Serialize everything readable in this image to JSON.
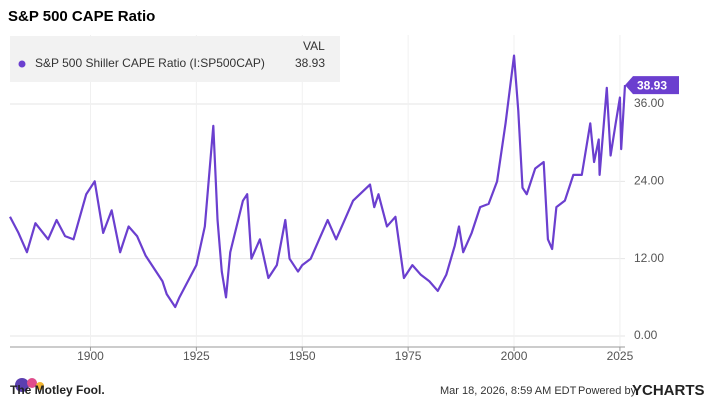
{
  "chart_data": {
    "type": "line",
    "title": "S&P 500 CAPE Ratio",
    "legend_header": "VAL",
    "x": [
      1881,
      1883,
      1885,
      1887,
      1890,
      1892,
      1894,
      1896,
      1899,
      1901,
      1903,
      1905,
      1907,
      1909,
      1911,
      1913,
      1915,
      1917,
      1918,
      1920,
      1921,
      1923,
      1925,
      1927,
      1929,
      1930,
      1931,
      1932,
      1933,
      1936,
      1937,
      1938,
      1940,
      1942,
      1944,
      1946,
      1947,
      1949,
      1950,
      1952,
      1954,
      1956,
      1958,
      1960,
      1962,
      1966,
      1967,
      1968,
      1970,
      1972,
      1974,
      1976,
      1978,
      1980,
      1982,
      1984,
      1986,
      1987,
      1988,
      1990,
      1992,
      1994,
      1996,
      1998,
      2000,
      2001,
      2002,
      2003,
      2005,
      2007,
      2008,
      2009,
      2010,
      2012,
      2014,
      2016,
      2018,
      2018.9,
      2020,
      2020.2,
      2021.9,
      2022.8,
      2024,
      2025,
      2025.3,
      2026.2
    ],
    "series": [
      {
        "name": "S&P 500 Shiller CAPE Ratio (I:SP500CAP)",
        "color": "#6b3fcf",
        "values": [
          18.5,
          16,
          13,
          17.5,
          15,
          18,
          15.5,
          15,
          22,
          24,
          16,
          19.5,
          13,
          17,
          15.5,
          12.5,
          10.5,
          8.5,
          6.5,
          4.5,
          6,
          8.5,
          11,
          17,
          32.6,
          18,
          10,
          6,
          13,
          21,
          22,
          12,
          15,
          9,
          11,
          18,
          12,
          10,
          11,
          12,
          15,
          18,
          15,
          18,
          21,
          23.5,
          20,
          22,
          17,
          18.5,
          9,
          11,
          9.5,
          8.5,
          7,
          9.5,
          14,
          17,
          13,
          16,
          20,
          20.5,
          24,
          33,
          43.5,
          35,
          23,
          22,
          26,
          27,
          15,
          13.5,
          20,
          21,
          25,
          25,
          33,
          27,
          30.5,
          25,
          38.5,
          28,
          33,
          37,
          29,
          38.93
        ]
      }
    ],
    "xlim": [
      1881,
      2026.2
    ],
    "ylim": [
      -1.7,
      46.7
    ],
    "xticks": [
      1900,
      1925,
      1950,
      1975,
      2000,
      2025
    ],
    "yticks": [
      {
        "value": 0,
        "label": "0.00"
      },
      {
        "value": 12,
        "label": "12.00"
      },
      {
        "value": 24,
        "label": "24.00"
      },
      {
        "value": 36,
        "label": "36.00"
      }
    ],
    "grid": true
  },
  "footer": {
    "brand": "The Motley Fool.",
    "timestamp": "Mar 18, 2026, 8:59 AM EDT",
    "powered_by": "Powered by",
    "provider": "YCHARTS"
  }
}
